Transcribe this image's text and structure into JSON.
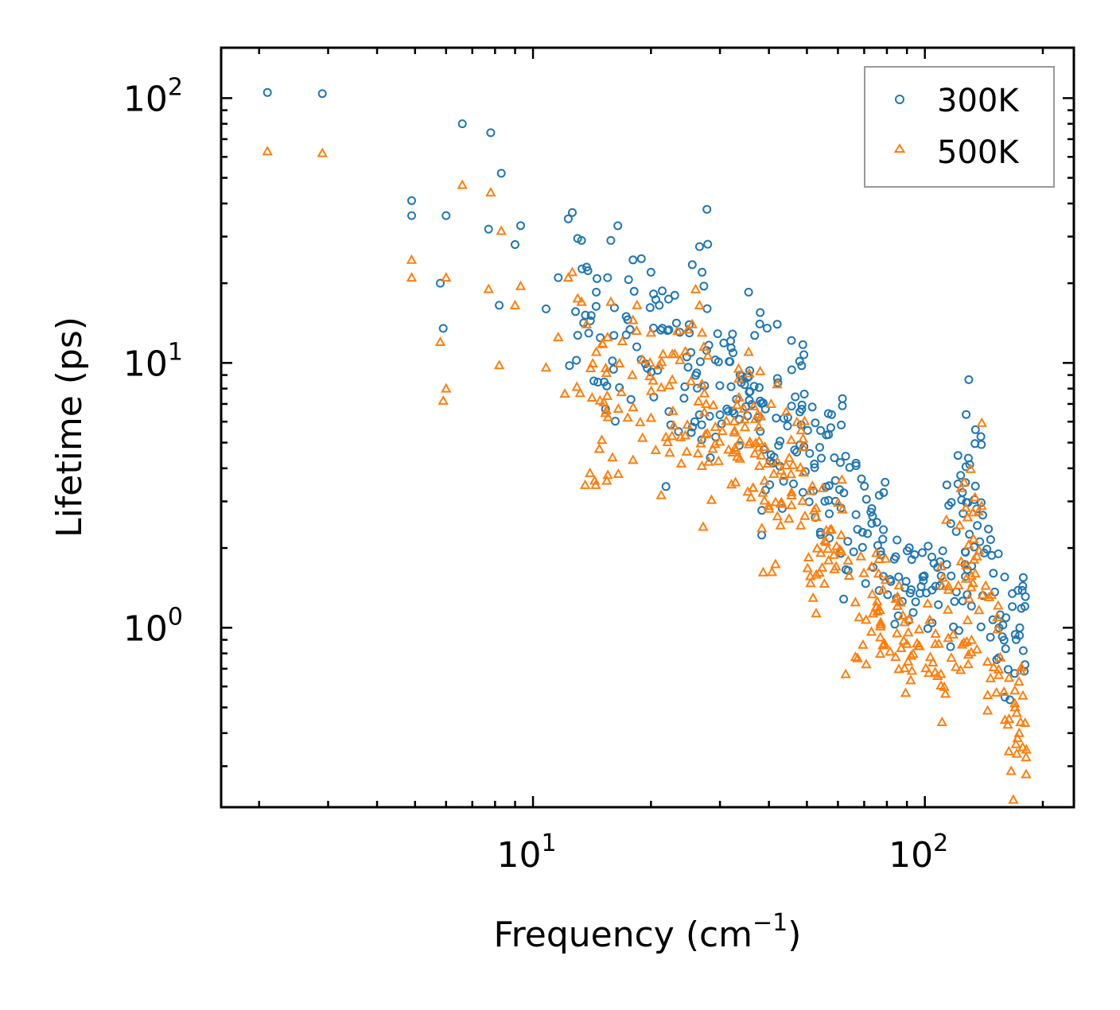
{
  "chart_data": {
    "type": "scatter",
    "xscale": "log",
    "yscale": "log",
    "xlabel": "Frequency (cm⁻¹)",
    "xlabel_parts": {
      "text": "Frequency (cm",
      "sup": "−1",
      "close": ")"
    },
    "ylabel": "Lifetime (ps)",
    "xlim": [
      1.6,
      240
    ],
    "ylim": [
      0.21,
      155
    ],
    "xticks": [
      {
        "value": 10,
        "base": "10",
        "exp": "1"
      },
      {
        "value": 100,
        "base": "10",
        "exp": "2"
      }
    ],
    "yticks": [
      {
        "value": 1,
        "base": "10",
        "exp": "0"
      },
      {
        "value": 10,
        "base": "10",
        "exp": "1"
      },
      {
        "value": 100,
        "base": "10",
        "exp": "2"
      }
    ],
    "legend": {
      "position": "top-right"
    },
    "series": [
      {
        "name": "300K",
        "marker": "circle",
        "color": "#1f77b4",
        "explicit_points": [
          [
            2.1,
            105
          ],
          [
            2.9,
            104
          ],
          [
            4.9,
            41
          ],
          [
            4.9,
            36
          ],
          [
            5.8,
            20
          ],
          [
            5.9,
            13.5
          ],
          [
            6.0,
            36
          ],
          [
            6.6,
            80
          ],
          [
            7.7,
            32
          ],
          [
            7.8,
            74
          ],
          [
            8.2,
            16.5
          ],
          [
            8.3,
            52
          ],
          [
            9.0,
            28
          ],
          [
            9.3,
            33
          ],
          [
            10.8,
            16
          ],
          [
            11.6,
            21
          ],
          [
            12.3,
            35
          ],
          [
            12.6,
            37
          ],
          [
            13.0,
            29.5
          ],
          [
            13.3,
            29
          ],
          [
            13.7,
            23
          ],
          [
            14.5,
            18.5
          ],
          [
            15.5,
            21
          ],
          [
            15.8,
            29
          ],
          [
            18.0,
            24.5
          ],
          [
            20.0,
            22
          ],
          [
            21.0,
            16.5
          ],
          [
            23.0,
            18
          ],
          [
            25.5,
            23.5
          ],
          [
            26.6,
            27.5
          ],
          [
            27.0,
            22
          ],
          [
            27.3,
            19.5
          ],
          [
            35.5,
            18.5
          ],
          [
            38.0,
            15.5
          ],
          [
            42.0,
            14
          ]
        ],
        "clusters": [
          [
            12,
            16,
            14,
            11,
            1.3,
            0.28,
            18
          ],
          [
            15,
            20,
            11.5,
            13,
            1.25,
            0.3,
            22
          ],
          [
            20,
            28,
            9.6,
            12,
            1.45,
            0.3,
            40
          ],
          [
            28,
            38,
            7.1,
            9,
            1.25,
            0.26,
            45
          ],
          [
            38,
            50,
            5.3,
            6.8,
            1.45,
            0.22,
            45
          ],
          [
            50,
            62,
            3.4,
            4.3,
            1.45,
            0.18,
            35
          ],
          [
            62,
            80,
            2.5,
            2.3,
            1.35,
            0.2,
            35
          ],
          [
            80,
            110,
            1.55,
            1.45,
            1.18,
            0.18,
            40
          ],
          [
            110,
            125,
            1.5,
            2.2,
            1.8,
            0.22,
            20
          ],
          [
            125,
            140,
            2.5,
            3.8,
            1.7,
            0.3,
            30
          ],
          [
            140,
            155,
            2.0,
            1.3,
            1.4,
            0.2,
            15
          ],
          [
            155,
            172,
            0.95,
            0.8,
            1.35,
            0.16,
            15
          ],
          [
            172,
            182,
            0.85,
            0.95,
            1.45,
            0.14,
            12
          ]
        ]
      },
      {
        "name": "500K",
        "marker": "triangle",
        "color": "#ff7f0e",
        "explicit_points": [
          [
            2.1,
            63
          ],
          [
            2.9,
            62
          ],
          [
            4.9,
            24.5
          ],
          [
            4.9,
            21
          ],
          [
            5.8,
            12
          ],
          [
            5.9,
            7.2
          ],
          [
            6.0,
            8
          ],
          [
            6.0,
            21
          ],
          [
            6.6,
            47
          ],
          [
            7.7,
            19
          ],
          [
            7.8,
            44
          ],
          [
            8.2,
            9.8
          ],
          [
            8.3,
            31.5
          ],
          [
            9.0,
            16.5
          ],
          [
            9.3,
            19.5
          ],
          [
            10.8,
            9.6
          ],
          [
            11.6,
            12.5
          ],
          [
            12.3,
            21
          ],
          [
            12.6,
            22
          ],
          [
            13.0,
            17.5
          ],
          [
            13.3,
            17
          ],
          [
            13.7,
            14
          ],
          [
            14.5,
            11
          ],
          [
            15.5,
            12.5
          ],
          [
            15.8,
            17
          ],
          [
            18.0,
            14.5
          ],
          [
            18.0,
            4.3
          ],
          [
            20.0,
            13
          ],
          [
            21.0,
            9.8
          ],
          [
            23.0,
            10.8
          ],
          [
            25.5,
            14
          ],
          [
            26.6,
            16.5
          ],
          [
            27.0,
            13
          ],
          [
            27.3,
            11.5
          ],
          [
            35.5,
            11
          ],
          [
            38.0,
            9.3
          ],
          [
            42.0,
            8.3
          ]
        ],
        "clusters": [
          [
            12,
            16,
            8.3,
            6.5,
            1.3,
            0.28,
            18
          ],
          [
            15,
            20,
            6.8,
            7.7,
            1.25,
            0.3,
            22
          ],
          [
            20,
            28,
            5.7,
            7.1,
            1.45,
            0.3,
            40
          ],
          [
            28,
            38,
            4.2,
            5.3,
            1.25,
            0.26,
            45
          ],
          [
            38,
            50,
            3.1,
            4.0,
            1.45,
            0.22,
            45
          ],
          [
            50,
            62,
            2.0,
            2.5,
            1.45,
            0.18,
            35
          ],
          [
            62,
            80,
            1.25,
            1.15,
            1.35,
            0.2,
            35
          ],
          [
            80,
            110,
            0.9,
            0.84,
            1.18,
            0.18,
            40
          ],
          [
            110,
            125,
            0.85,
            1.25,
            1.8,
            0.22,
            20
          ],
          [
            125,
            140,
            1.3,
            2.0,
            1.7,
            0.3,
            30
          ],
          [
            140,
            155,
            1.05,
            0.7,
            1.4,
            0.2,
            15
          ],
          [
            155,
            172,
            0.5,
            0.36,
            1.35,
            0.16,
            15
          ],
          [
            172,
            182,
            0.45,
            0.5,
            1.45,
            0.14,
            12
          ]
        ]
      }
    ]
  }
}
